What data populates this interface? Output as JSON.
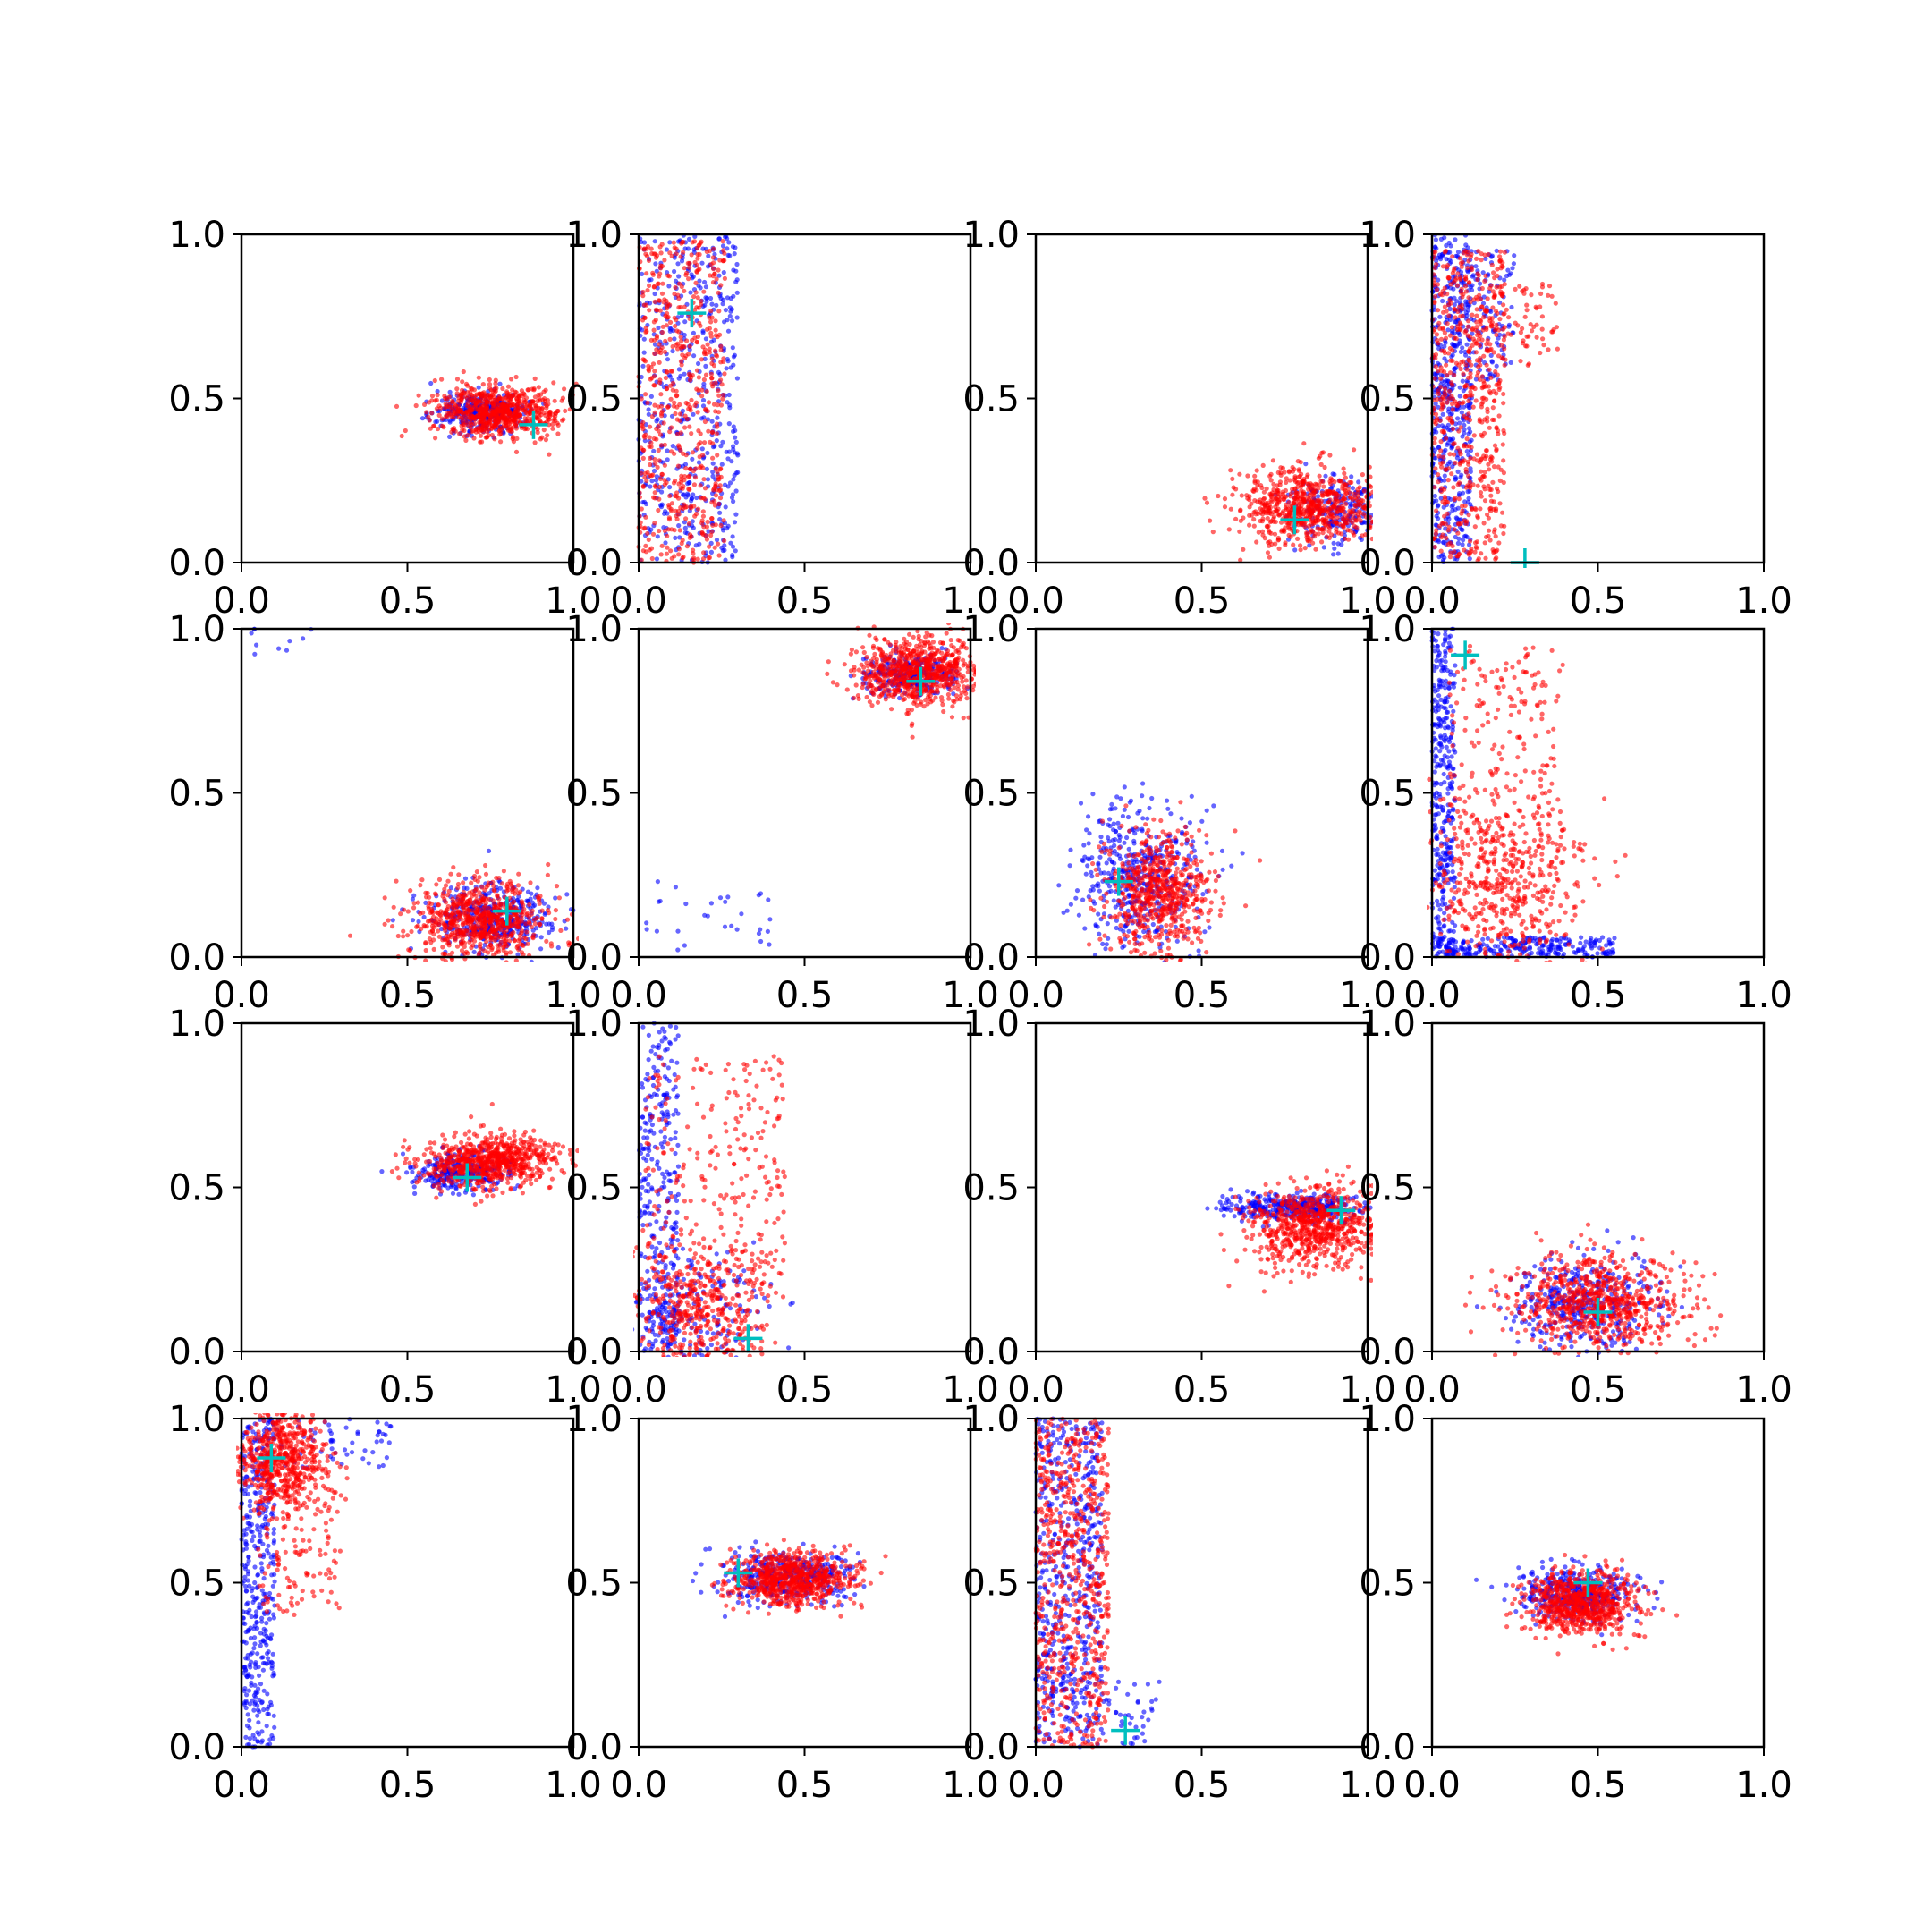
{
  "chart_data": {
    "type": "scatter",
    "layout": {
      "rows": 4,
      "cols": 4
    },
    "axis": {
      "xlim": [
        0,
        1
      ],
      "ylim": [
        0,
        1
      ],
      "xticks": [
        0,
        0.5,
        1
      ],
      "yticks": [
        0,
        0.5,
        1
      ],
      "xtick_labels": [
        "0.0",
        "0.5",
        "1.0"
      ],
      "ytick_labels": [
        "0.0",
        "0.5",
        "1.0"
      ]
    },
    "colors": {
      "series_a": "#0000ff",
      "series_b": "#ff0000",
      "marker": "#00bfbf"
    },
    "subplots": [
      {
        "marker": [
          0.88,
          0.42
        ],
        "a": [
          {
            "shape": "gauss",
            "cx": 0.72,
            "cy": 0.46,
            "sx": 0.07,
            "sy": 0.03,
            "n": 320
          }
        ],
        "b": [
          {
            "shape": "gauss",
            "cx": 0.77,
            "cy": 0.46,
            "sx": 0.09,
            "sy": 0.04,
            "n": 700
          }
        ]
      },
      {
        "marker": [
          0.16,
          0.76
        ],
        "a": [
          {
            "shape": "uniform",
            "x": [
              0.0,
              0.3
            ],
            "y": [
              0.0,
              1.0
            ],
            "n": 500
          }
        ],
        "b": [
          {
            "shape": "uniform",
            "x": [
              0.0,
              0.26
            ],
            "y": [
              0.0,
              0.98
            ],
            "n": 600
          }
        ]
      },
      {
        "marker": [
          0.78,
          0.13
        ],
        "a": [
          {
            "shape": "gauss",
            "cx": 0.9,
            "cy": 0.16,
            "sx": 0.07,
            "sy": 0.05,
            "n": 200
          }
        ],
        "b": [
          {
            "shape": "gauss",
            "cx": 0.82,
            "cy": 0.17,
            "sx": 0.11,
            "sy": 0.06,
            "n": 700
          }
        ]
      },
      {
        "marker": [
          0.28,
          0.0
        ],
        "a": [
          {
            "shape": "uniform",
            "x": [
              0.0,
              0.12
            ],
            "y": [
              0.0,
              1.0
            ],
            "n": 500
          },
          {
            "shape": "uniform",
            "x": [
              0.12,
              0.25
            ],
            "y": [
              0.55,
              0.95
            ],
            "n": 100
          }
        ],
        "b": [
          {
            "shape": "uniform",
            "x": [
              0.0,
              0.22
            ],
            "y": [
              0.0,
              0.95
            ],
            "n": 600
          },
          {
            "shape": "uniform",
            "x": [
              0.12,
              0.38
            ],
            "y": [
              0.6,
              0.85
            ],
            "n": 80
          }
        ]
      },
      {
        "marker": [
          0.8,
          0.14
        ],
        "a": [
          {
            "shape": "gauss",
            "cx": 0.75,
            "cy": 0.12,
            "sx": 0.09,
            "sy": 0.05,
            "n": 400
          },
          {
            "shape": "uniform",
            "x": [
              0.02,
              0.25
            ],
            "y": [
              0.92,
              1.0
            ],
            "n": 10
          }
        ],
        "b": [
          {
            "shape": "gauss",
            "cx": 0.72,
            "cy": 0.11,
            "sx": 0.1,
            "sy": 0.06,
            "n": 700
          }
        ]
      },
      {
        "marker": [
          0.85,
          0.84
        ],
        "a": [
          {
            "shape": "gauss",
            "cx": 0.82,
            "cy": 0.86,
            "sx": 0.07,
            "sy": 0.03,
            "n": 300
          },
          {
            "shape": "uniform",
            "x": [
              0.02,
              0.4
            ],
            "y": [
              0.0,
              0.25
            ],
            "n": 30
          }
        ],
        "b": [
          {
            "shape": "gauss",
            "cx": 0.84,
            "cy": 0.87,
            "sx": 0.09,
            "sy": 0.05,
            "n": 700
          }
        ]
      },
      {
        "marker": [
          0.25,
          0.23
        ],
        "a": [
          {
            "shape": "gauss",
            "cx": 0.32,
            "cy": 0.25,
            "sx": 0.1,
            "sy": 0.11,
            "n": 450
          }
        ],
        "b": [
          {
            "shape": "gauss",
            "cx": 0.37,
            "cy": 0.2,
            "sx": 0.08,
            "sy": 0.09,
            "n": 600
          }
        ]
      },
      {
        "marker": [
          0.1,
          0.92
        ],
        "a": [
          {
            "shape": "uniform",
            "x": [
              0.0,
              0.07
            ],
            "y": [
              0.0,
              1.0
            ],
            "n": 350
          },
          {
            "shape": "uniform",
            "x": [
              0.0,
              0.55
            ],
            "y": [
              0.0,
              0.06
            ],
            "n": 250
          }
        ],
        "b": [
          {
            "shape": "gauss",
            "cx": 0.22,
            "cy": 0.2,
            "sx": 0.12,
            "sy": 0.13,
            "n": 500
          },
          {
            "shape": "uniform",
            "x": [
              0.05,
              0.4
            ],
            "y": [
              0.3,
              0.95
            ],
            "n": 200
          }
        ]
      },
      {
        "marker": [
          0.68,
          0.53
        ],
        "a": [
          {
            "shape": "gauss",
            "cx": 0.65,
            "cy": 0.55,
            "sx": 0.07,
            "sy": 0.03,
            "n": 300
          }
        ],
        "b": [
          {
            "shape": "gauss",
            "cx": 0.75,
            "cy": 0.58,
            "sx": 0.1,
            "sy": 0.04,
            "n": 700
          }
        ]
      },
      {
        "marker": [
          0.33,
          0.04
        ],
        "a": [
          {
            "shape": "uniform",
            "x": [
              0.0,
              0.12
            ],
            "y": [
              0.0,
              1.0
            ],
            "n": 300
          },
          {
            "shape": "gauss",
            "cx": 0.15,
            "cy": 0.12,
            "sx": 0.12,
            "sy": 0.1,
            "n": 200
          }
        ],
        "b": [
          {
            "shape": "gauss",
            "cx": 0.18,
            "cy": 0.12,
            "sx": 0.1,
            "sy": 0.1,
            "n": 450
          },
          {
            "shape": "uniform",
            "x": [
              0.02,
              0.45
            ],
            "y": [
              0.15,
              0.9
            ],
            "n": 250
          }
        ]
      },
      {
        "marker": [
          0.92,
          0.43
        ],
        "a": [
          {
            "shape": "gauss",
            "cx": 0.78,
            "cy": 0.44,
            "sx": 0.1,
            "sy": 0.02,
            "n": 350
          }
        ],
        "b": [
          {
            "shape": "gauss",
            "cx": 0.84,
            "cy": 0.38,
            "sx": 0.1,
            "sy": 0.06,
            "n": 700
          }
        ]
      },
      {
        "marker": [
          0.5,
          0.12
        ],
        "a": [
          {
            "shape": "gauss",
            "cx": 0.45,
            "cy": 0.15,
            "sx": 0.1,
            "sy": 0.07,
            "n": 400
          }
        ],
        "b": [
          {
            "shape": "gauss",
            "cx": 0.5,
            "cy": 0.15,
            "sx": 0.13,
            "sy": 0.07,
            "n": 700
          }
        ]
      },
      {
        "marker": [
          0.09,
          0.88
        ],
        "a": [
          {
            "shape": "uniform",
            "x": [
              0.0,
              0.1
            ],
            "y": [
              0.0,
              1.0
            ],
            "n": 400
          },
          {
            "shape": "uniform",
            "x": [
              0.1,
              0.45
            ],
            "y": [
              0.85,
              1.0
            ],
            "n": 60
          }
        ],
        "b": [
          {
            "shape": "gauss",
            "cx": 0.12,
            "cy": 0.88,
            "sx": 0.07,
            "sy": 0.08,
            "n": 600
          },
          {
            "shape": "uniform",
            "x": [
              0.05,
              0.3
            ],
            "y": [
              0.4,
              0.8
            ],
            "n": 120
          }
        ]
      },
      {
        "marker": [
          0.3,
          0.53
        ],
        "a": [
          {
            "shape": "gauss",
            "cx": 0.45,
            "cy": 0.52,
            "sx": 0.1,
            "sy": 0.04,
            "n": 400
          }
        ],
        "b": [
          {
            "shape": "gauss",
            "cx": 0.46,
            "cy": 0.51,
            "sx": 0.09,
            "sy": 0.04,
            "n": 700
          }
        ]
      },
      {
        "marker": [
          0.27,
          0.05
        ],
        "a": [
          {
            "shape": "uniform",
            "x": [
              0.0,
              0.2
            ],
            "y": [
              0.0,
              1.0
            ],
            "n": 550
          },
          {
            "shape": "uniform",
            "x": [
              0.2,
              0.38
            ],
            "y": [
              0.0,
              0.2
            ],
            "n": 40
          }
        ],
        "b": [
          {
            "shape": "uniform",
            "x": [
              0.0,
              0.22
            ],
            "y": [
              0.0,
              1.0
            ],
            "n": 650
          }
        ]
      },
      {
        "marker": [
          0.47,
          0.5
        ],
        "a": [
          {
            "shape": "gauss",
            "cx": 0.44,
            "cy": 0.47,
            "sx": 0.09,
            "sy": 0.04,
            "n": 400
          }
        ],
        "b": [
          {
            "shape": "gauss",
            "cx": 0.45,
            "cy": 0.44,
            "sx": 0.08,
            "sy": 0.05,
            "n": 700
          }
        ]
      }
    ]
  }
}
